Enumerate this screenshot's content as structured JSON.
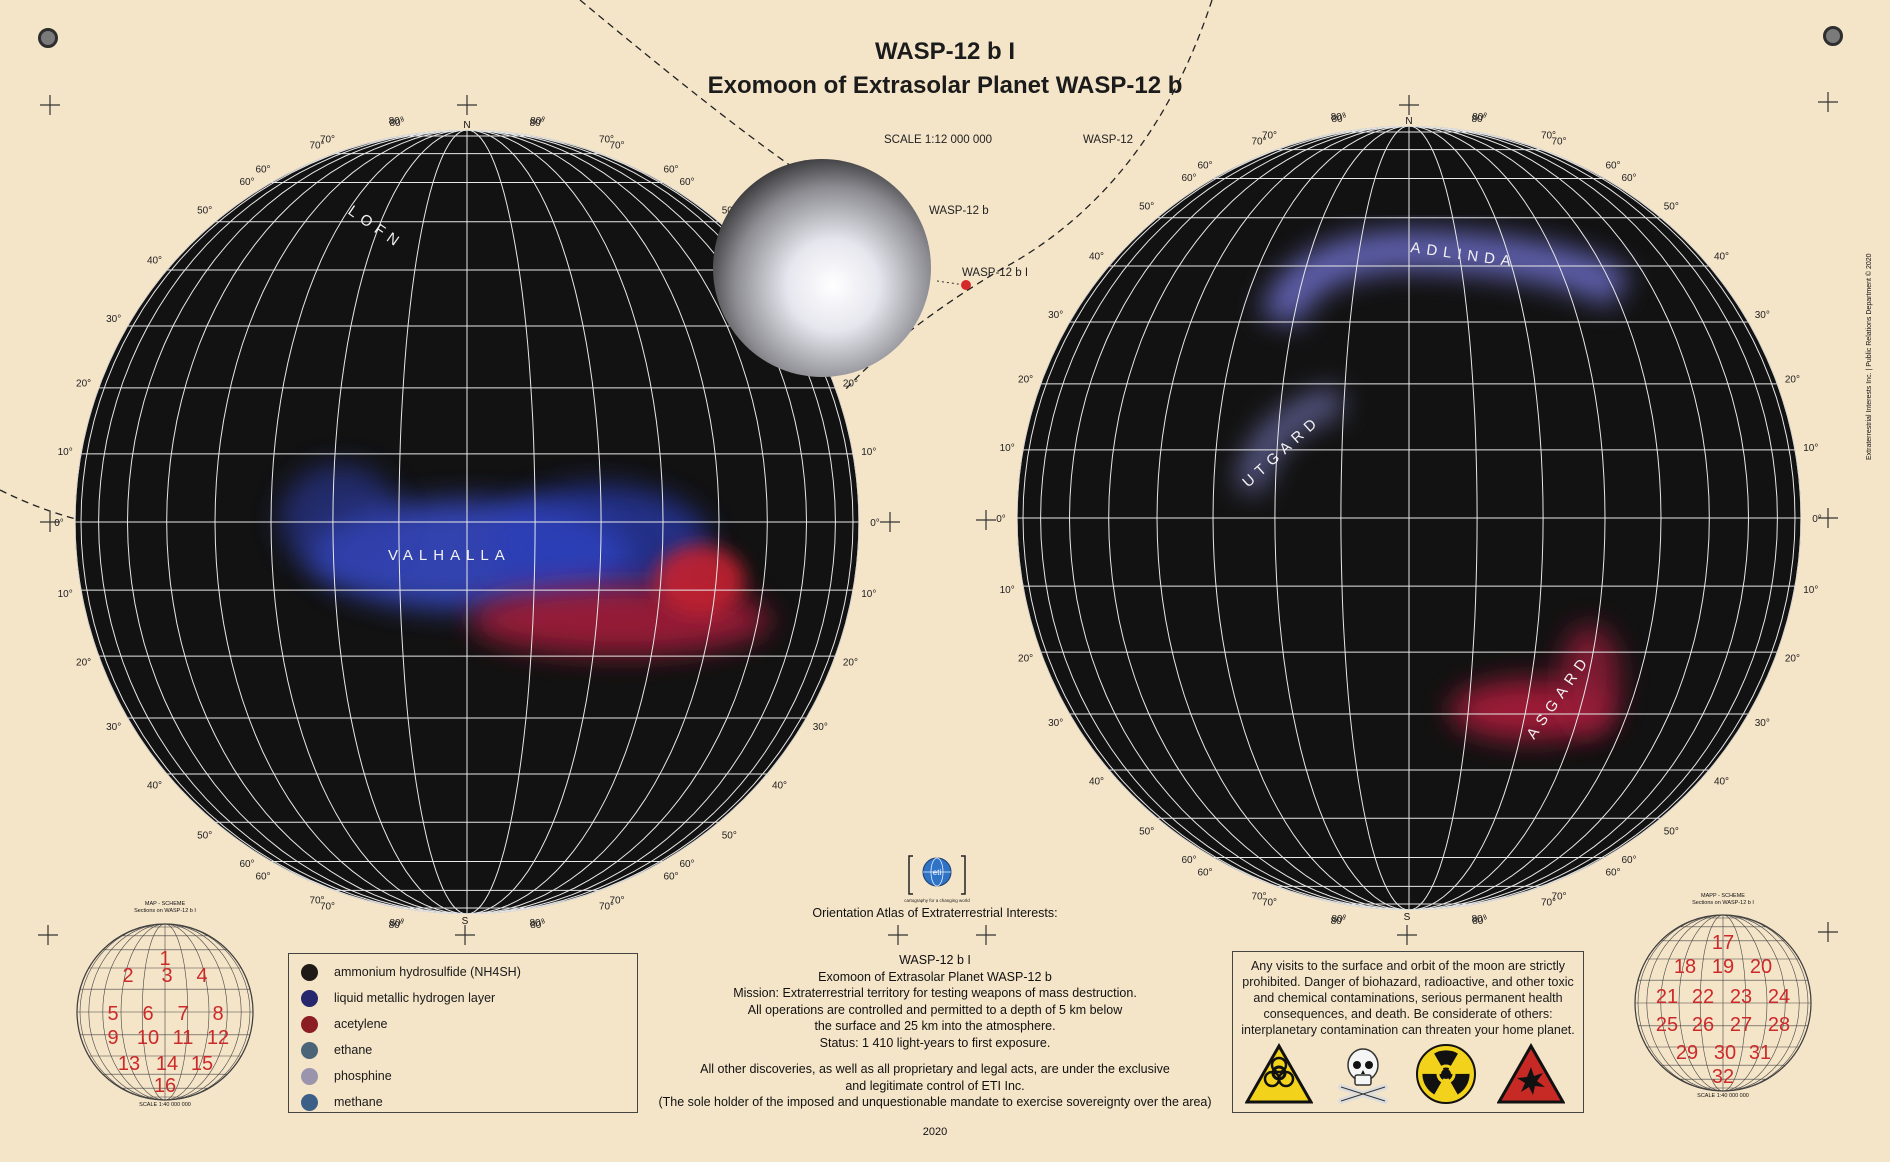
{
  "title": "WASP-12 b I",
  "subtitle": "Exomoon of Extrasolar Planet WASP-12 b",
  "scale_label": "SCALE 1:12 000 000",
  "star_label": "WASP-12",
  "orbit_planet_label": "WASP-12 b",
  "orbit_moon_label": "WASP-12 b I",
  "side_credit": "Extraterrestrial Interests Inc. | Public Relations Department © 2020",
  "west_hemisphere": {
    "pole_north": "N",
    "pole_south": "S",
    "regions": [
      "LOFN",
      "VALHALLA"
    ],
    "lat_labels": [
      "80°",
      "70°",
      "60°",
      "50°",
      "40°",
      "30°",
      "20°",
      "10°",
      "0°"
    ]
  },
  "east_hemisphere": {
    "pole_north": "N",
    "pole_south": "S",
    "regions": [
      "ADLINDA",
      "UTGARD",
      "ASGARD"
    ],
    "lat_labels": [
      "80°",
      "70°",
      "60°",
      "50°",
      "40°",
      "30°",
      "20°",
      "10°",
      "0°"
    ]
  },
  "logo_tagline": "cartography for a changing world",
  "logo_text": "eti",
  "atlas_heading": "Orientation Atlas of Extraterrestrial Interests:",
  "center_block": [
    "WASP-12 b I",
    "Exomoon of Extrasolar Planet WASP-12 b",
    "Mission: Extraterrestrial territory for testing weapons of mass destruction.",
    "All operations are controlled and permitted to a depth of 5 km below",
    "the surface and 25 km into the atmosphere.",
    "Status: 1 410 light-years to first exposure."
  ],
  "legal_block": [
    "All other discoveries, as well as all proprietary and legal acts, are under the exclusive",
    "and legitimate control of ETI Inc.",
    "(The sole holder of the imposed and unquestionable mandate to exercise sovereignty over the area)"
  ],
  "year": "2020",
  "legend": [
    {
      "label": "ammonium hydrosulfide (NH4SH)",
      "color": "#1f1a17"
    },
    {
      "label": "liquid metallic hydrogen layer",
      "color": "#27276e"
    },
    {
      "label": "acetylene",
      "color": "#8a1e22"
    },
    {
      "label": "ethane",
      "color": "#4b6478"
    },
    {
      "label": "phosphine",
      "color": "#9a95ad"
    },
    {
      "label": "methane",
      "color": "#3b5f86"
    }
  ],
  "warning_lines": [
    "Any visits to the surface and orbit of the moon are strictly",
    "prohibited. Danger of biohazard, radioactive, and other toxic",
    "and chemical contaminations, serious permanent health",
    "consequences, and death. Be considerate of others:",
    "interplanetary contamination can threaten your home planet."
  ],
  "warning_icons": [
    "biohazard-icon",
    "skull-crossbones-icon",
    "radiation-icon",
    "explosion-hazard-icon"
  ],
  "scheme_left": {
    "title_line1": "MAP - SCHEME",
    "title_line2": "Sections on WASP-12 b I",
    "scale": "SCALE 1:40 000 000",
    "sections": [
      "1",
      "2",
      "3",
      "4",
      "5",
      "6",
      "7",
      "8",
      "9",
      "10",
      "11",
      "12",
      "13",
      "14",
      "15",
      "16"
    ]
  },
  "scheme_right": {
    "title_line1": "MAPP - SCHEME",
    "title_line2": "Sections on WASP-12 b I",
    "scale": "SCALE 1:40 000 000",
    "sections": [
      "17",
      "18",
      "19",
      "20",
      "21",
      "22",
      "23",
      "24",
      "25",
      "26",
      "27",
      "28",
      "29",
      "30",
      "31",
      "32"
    ]
  },
  "colors": {
    "paper": "#f4e4c8",
    "sphere": "#111111",
    "grid": "#e8e8e8",
    "accent_red": "#c8262a"
  }
}
